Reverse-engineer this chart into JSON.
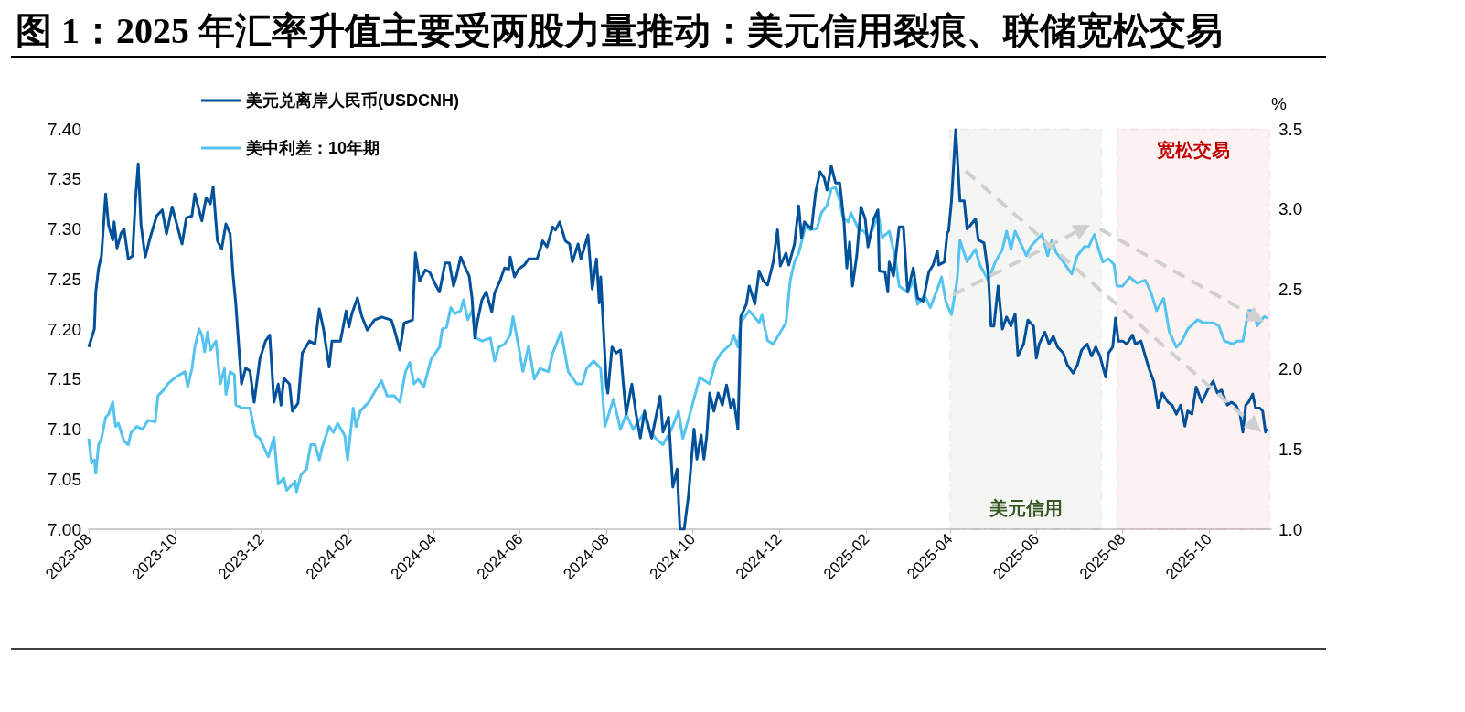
{
  "chart_data": {
    "type": "line",
    "title": "图 1：2025 年汇率升值主要受两股力量推动：美元信用裂痕、联储宽松交易",
    "y2label": "%",
    "legend": "top left",
    "marker": "none",
    "xlim": [
      "2023-08-01",
      "2025-11-14"
    ],
    "xticks": [
      {
        "value": "2023-08",
        "label": "2023-08"
      },
      {
        "value": "2023-10",
        "label": "2023-10"
      },
      {
        "value": "2023-12",
        "label": "2023-12"
      },
      {
        "value": "2024-02",
        "label": "2024-02"
      },
      {
        "value": "2024-04",
        "label": "2024-04"
      },
      {
        "value": "2024-06",
        "label": "2024-06"
      },
      {
        "value": "2024-08",
        "label": "2024-08"
      },
      {
        "value": "2024-10",
        "label": "2024-10"
      },
      {
        "value": "2024-12",
        "label": "2024-12"
      },
      {
        "value": "2025-02",
        "label": "2025-02"
      },
      {
        "value": "2025-04",
        "label": "2025-04"
      },
      {
        "value": "2025-06",
        "label": "2025-06"
      },
      {
        "value": "2025-08",
        "label": "2025-08"
      },
      {
        "value": "2025-10",
        "label": "2025-10"
      }
    ],
    "ylim": [
      7.0,
      7.4
    ],
    "yticks": [
      {
        "value": 7,
        "label": "7.00"
      },
      7.05,
      {
        "value": 7.1,
        "label": "7.10"
      },
      7.15,
      {
        "value": 7.2,
        "label": "7.20"
      },
      7.25,
      {
        "value": 7.3,
        "label": "7.30"
      },
      7.35,
      {
        "value": 7.4,
        "label": "7.40"
      }
    ],
    "y2lim": [
      1.0,
      3.5
    ],
    "y2ticks": [
      {
        "value": 1,
        "label": "1.0"
      },
      1.5,
      {
        "value": 2,
        "label": "2.0"
      },
      2.5,
      {
        "value": 3,
        "label": "3.0"
      },
      3.5
    ],
    "bands": [
      {
        "axis": "x",
        "from": "2025-04-01",
        "to": "2025-07-17",
        "label": "美元信用",
        "color": "#375623"
      },
      {
        "axis": "x",
        "from": "2025-07-28",
        "to": "2025-11-13",
        "label": "宽松交易",
        "color": "#c00000"
      }
    ],
    "series": [
      {
        "name": "美元兑离岸人民币(USDCNH)",
        "color": "#00509a",
        "axis": "y",
        "x": [
          "2023-08-01",
          "2023-08-05",
          "2023-08-06",
          "2023-08-08",
          "2023-08-10",
          "2023-08-13",
          "2023-08-15",
          "2023-08-18",
          "2023-08-19",
          "2023-08-21",
          "2023-08-24",
          "2023-08-26",
          "2023-08-29",
          "2023-09-01",
          "2023-09-03",
          "2023-09-05",
          "2023-09-07",
          "2023-09-10",
          "2023-09-13",
          "2023-09-18",
          "2023-09-22",
          "2023-09-25",
          "2023-09-29",
          "2023-10-06",
          "2023-10-09",
          "2023-10-13",
          "2023-10-15",
          "2023-10-20",
          "2023-10-23",
          "2023-10-26",
          "2023-10-28",
          "2023-10-31",
          "2023-11-03",
          "2023-11-06",
          "2023-11-09",
          "2023-11-11",
          "2023-11-13",
          "2023-11-17",
          "2023-11-20",
          "2023-11-23",
          "2023-11-26",
          "2023-11-30",
          "2023-12-04",
          "2023-12-07",
          "2023-12-10",
          "2023-12-13",
          "2023-12-15",
          "2023-12-17",
          "2023-12-21",
          "2023-12-23",
          "2023-12-27",
          "2023-12-30",
          "2024-01-04",
          "2024-01-08",
          "2024-01-11",
          "2024-01-14",
          "2024-01-18",
          "2024-01-20",
          "2024-01-26",
          "2024-01-30",
          "2024-02-01",
          "2024-02-03",
          "2024-02-07",
          "2024-02-10",
          "2024-02-14",
          "2024-02-19",
          "2024-02-24",
          "2024-03-02",
          "2024-03-04",
          "2024-03-08",
          "2024-03-11",
          "2024-03-17",
          "2024-03-19",
          "2024-03-22",
          "2024-03-26",
          "2024-03-29",
          "2024-04-02",
          "2024-04-05",
          "2024-04-09",
          "2024-04-12",
          "2024-04-15",
          "2024-04-17",
          "2024-04-20",
          "2024-04-24",
          "2024-04-26",
          "2024-04-28",
          "2024-04-30",
          "2024-05-02",
          "2024-05-05",
          "2024-05-08",
          "2024-05-12",
          "2024-05-14",
          "2024-05-18",
          "2024-05-21",
          "2024-05-24",
          "2024-05-25",
          "2024-05-28",
          "2024-05-31",
          "2024-06-04",
          "2024-06-07",
          "2024-06-13",
          "2024-06-17",
          "2024-06-20",
          "2024-06-24",
          "2024-06-26",
          "2024-06-29",
          "2024-07-03",
          "2024-07-06",
          "2024-07-08",
          "2024-07-12",
          "2024-07-14",
          "2024-07-19",
          "2024-07-22",
          "2024-07-25",
          "2024-07-27",
          "2024-07-28",
          "2024-08-01",
          "2024-08-02",
          "2024-08-05",
          "2024-08-08",
          "2024-08-11",
          "2024-08-13",
          "2024-08-15",
          "2024-08-19",
          "2024-08-22",
          "2024-08-25",
          "2024-08-28",
          "2024-09-02",
          "2024-09-08",
          "2024-09-10",
          "2024-09-14",
          "2024-09-17",
          "2024-09-20",
          "2024-09-22",
          "2024-09-25",
          "2024-09-28",
          "2024-10-02",
          "2024-10-04",
          "2024-10-07",
          "2024-10-09",
          "2024-10-11",
          "2024-10-13",
          "2024-10-16",
          "2024-10-19",
          "2024-10-22",
          "2024-10-25",
          "2024-10-28",
          "2024-10-30",
          "2024-11-02",
          "2024-11-03",
          "2024-11-04",
          "2024-11-08",
          "2024-11-10",
          "2024-11-14",
          "2024-11-17",
          "2024-11-20",
          "2024-11-23",
          "2024-11-27",
          "2024-11-30",
          "2024-12-02",
          "2024-12-06",
          "2024-12-08",
          "2024-12-12",
          "2024-12-15",
          "2024-12-17",
          "2024-12-19",
          "2024-12-24",
          "2024-12-27",
          "2024-12-30",
          "2025-01-02",
          "2025-01-04",
          "2025-01-07",
          "2025-01-10",
          "2025-01-13",
          "2025-01-16",
          "2025-01-18",
          "2025-01-20",
          "2025-01-22",
          "2025-01-25",
          "2025-01-28",
          "2025-01-31",
          "2025-02-02",
          "2025-02-06",
          "2025-02-09",
          "2025-02-10",
          "2025-02-14",
          "2025-02-16",
          "2025-02-17",
          "2025-02-20",
          "2025-02-24",
          "2025-02-27",
          "2025-03-02",
          "2025-03-06",
          "2025-03-09",
          "2025-03-13",
          "2025-03-17",
          "2025-03-20",
          "2025-03-23",
          "2025-03-24",
          "2025-03-28",
          "2025-03-30",
          "2025-03-31",
          "2025-04-02",
          "2025-04-05",
          "2025-04-08",
          "2025-04-11",
          "2025-04-13",
          "2025-04-15",
          "2025-04-19",
          "2025-04-21",
          "2025-04-25",
          "2025-04-28",
          "2025-04-30",
          "2025-05-02",
          "2025-05-05",
          "2025-05-08",
          "2025-05-11",
          "2025-05-14",
          "2025-05-17",
          "2025-05-19",
          "2025-05-23",
          "2025-05-26",
          "2025-05-30",
          "2025-06-01",
          "2025-06-03",
          "2025-06-07",
          "2025-06-10",
          "2025-06-13",
          "2025-06-16",
          "2025-06-20",
          "2025-06-23",
          "2025-06-27",
          "2025-06-30",
          "2025-07-03",
          "2025-07-07",
          "2025-07-10",
          "2025-07-13",
          "2025-07-16",
          "2025-07-20",
          "2025-07-22",
          "2025-07-25",
          "2025-07-27",
          "2025-07-29",
          "2025-08-01",
          "2025-08-04",
          "2025-08-08",
          "2025-08-10",
          "2025-08-14",
          "2025-08-17",
          "2025-08-20",
          "2025-08-23",
          "2025-08-26",
          "2025-08-29",
          "2025-09-02",
          "2025-09-05",
          "2025-09-08",
          "2025-09-11",
          "2025-09-14",
          "2025-09-16",
          "2025-09-19",
          "2025-09-22",
          "2025-09-26",
          "2025-09-30",
          "2025-10-04",
          "2025-10-07",
          "2025-10-10",
          "2025-10-14",
          "2025-10-17",
          "2025-10-20",
          "2025-10-23",
          "2025-10-25",
          "2025-10-27",
          "2025-10-29",
          "2025-11-01",
          "2025-11-03",
          "2025-11-06",
          "2025-11-08",
          "2025-11-10",
          "2025-11-12"
        ],
        "values": [
          7.182,
          7.2,
          7.237,
          7.261,
          7.273,
          7.335,
          7.304,
          7.289,
          7.307,
          7.281,
          7.296,
          7.3,
          7.27,
          7.273,
          7.328,
          7.365,
          7.304,
          7.272,
          7.289,
          7.313,
          7.319,
          7.295,
          7.322,
          7.285,
          7.311,
          7.313,
          7.335,
          7.308,
          7.331,
          7.325,
          7.342,
          7.288,
          7.28,
          7.305,
          7.295,
          7.255,
          7.225,
          7.145,
          7.161,
          7.158,
          7.127,
          7.17,
          7.188,
          7.194,
          7.127,
          7.145,
          7.124,
          7.151,
          7.145,
          7.118,
          7.126,
          7.176,
          7.188,
          7.185,
          7.22,
          7.2,
          7.162,
          7.188,
          7.188,
          7.218,
          7.202,
          7.215,
          7.231,
          7.213,
          7.199,
          7.209,
          7.212,
          7.209,
          7.2,
          7.179,
          7.206,
          7.209,
          7.276,
          7.248,
          7.259,
          7.257,
          7.245,
          7.237,
          7.266,
          7.266,
          7.243,
          7.253,
          7.272,
          7.259,
          7.253,
          7.231,
          7.191,
          7.209,
          7.229,
          7.237,
          7.217,
          7.236,
          7.249,
          7.261,
          7.26,
          7.272,
          7.252,
          7.26,
          7.264,
          7.27,
          7.27,
          7.288,
          7.282,
          7.302,
          7.299,
          7.307,
          7.288,
          7.285,
          7.267,
          7.285,
          7.27,
          7.294,
          7.24,
          7.27,
          7.226,
          7.252,
          7.145,
          7.136,
          7.182,
          7.176,
          7.179,
          7.145,
          7.115,
          7.145,
          7.115,
          7.091,
          7.118,
          7.091,
          7.133,
          7.097,
          7.112,
          7.042,
          7.06,
          7.0,
          7.0,
          7.033,
          7.1,
          7.07,
          7.094,
          7.07,
          7.094,
          7.136,
          7.118,
          7.136,
          7.124,
          7.144,
          7.121,
          7.13,
          7.1,
          7.152,
          7.212,
          7.225,
          7.243,
          7.225,
          7.258,
          7.248,
          7.244,
          7.267,
          7.299,
          7.263,
          7.276,
          7.264,
          7.285,
          7.323,
          7.291,
          7.307,
          7.3,
          7.337,
          7.357,
          7.351,
          7.339,
          7.363,
          7.346,
          7.346,
          7.307,
          7.261,
          7.287,
          7.243,
          7.273,
          7.322,
          7.31,
          7.282,
          7.31,
          7.319,
          7.258,
          7.257,
          7.237,
          7.267,
          7.253,
          7.302,
          7.302,
          7.237,
          7.261,
          7.231,
          7.228,
          7.257,
          7.264,
          7.278,
          7.264,
          7.267,
          7.296,
          7.298,
          7.328,
          7.399,
          7.328,
          7.328,
          7.3,
          7.303,
          7.31,
          7.289,
          7.286,
          7.255,
          7.203,
          7.203,
          7.243,
          7.2,
          7.212,
          7.203,
          7.215,
          7.173,
          7.185,
          7.209,
          7.203,
          7.171,
          7.185,
          7.197,
          7.185,
          7.193,
          7.182,
          7.176,
          7.164,
          7.156,
          7.164,
          7.179,
          7.185,
          7.173,
          7.182,
          7.173,
          7.152,
          7.176,
          7.182,
          7.211,
          7.188,
          7.188,
          7.185,
          7.194,
          7.185,
          7.188,
          7.173,
          7.159,
          7.148,
          7.121,
          7.136,
          7.127,
          7.124,
          7.115,
          7.124,
          7.103,
          7.118,
          7.115,
          7.142,
          7.127,
          7.139,
          7.148,
          7.136,
          7.139,
          7.124,
          7.127,
          7.124,
          7.115,
          7.097,
          7.124,
          7.127,
          7.135,
          7.121,
          7.121,
          7.118,
          7.097,
          7.1
        ]
      },
      {
        "name": "美中利差：10年期",
        "color": "#55c3f0",
        "axis": "y2",
        "x": [
          "2023-08-01",
          "2023-08-03",
          "2023-08-05",
          "2023-08-06",
          "2023-08-08",
          "2023-08-10",
          "2023-08-13",
          "2023-08-15",
          "2023-08-18",
          "2023-08-20",
          "2023-08-22",
          "2023-08-26",
          "2023-08-29",
          "2023-08-31",
          "2023-09-04",
          "2023-09-08",
          "2023-09-12",
          "2023-09-17",
          "2023-09-19",
          "2023-09-23",
          "2023-09-26",
          "2023-10-01",
          "2023-10-08",
          "2023-10-10",
          "2023-10-13",
          "2023-10-15",
          "2023-10-18",
          "2023-10-20",
          "2023-10-22",
          "2023-10-24",
          "2023-10-26",
          "2023-10-30",
          "2023-11-02",
          "2023-11-05",
          "2023-11-06",
          "2023-11-09",
          "2023-11-12",
          "2023-11-13",
          "2023-11-18",
          "2023-11-23",
          "2023-11-27",
          "2023-11-30",
          "2023-12-06",
          "2023-12-10",
          "2023-12-13",
          "2023-12-17",
          "2023-12-19",
          "2023-12-25",
          "2023-12-26",
          "2023-12-29",
          "2024-01-02",
          "2024-01-05",
          "2024-01-08",
          "2024-01-11",
          "2024-01-13",
          "2024-01-18",
          "2024-01-21",
          "2024-01-24",
          "2024-01-29",
          "2024-01-31",
          "2024-02-04",
          "2024-02-06",
          "2024-02-09",
          "2024-02-15",
          "2024-02-20",
          "2024-02-24",
          "2024-02-28",
          "2024-03-04",
          "2024-03-08",
          "2024-03-12",
          "2024-03-15",
          "2024-03-18",
          "2024-03-21",
          "2024-03-25",
          "2024-03-30",
          "2024-04-05",
          "2024-04-07",
          "2024-04-10",
          "2024-04-13",
          "2024-04-16",
          "2024-04-20",
          "2024-04-22",
          "2024-04-25",
          "2024-04-28",
          "2024-05-01",
          "2024-05-05",
          "2024-05-11",
          "2024-05-14",
          "2024-05-17",
          "2024-05-21",
          "2024-05-25",
          "2024-05-27",
          "2024-05-31",
          "2024-06-03",
          "2024-06-07",
          "2024-06-11",
          "2024-06-15",
          "2024-06-21",
          "2024-06-24",
          "2024-06-30",
          "2024-07-05",
          "2024-07-11",
          "2024-07-15",
          "2024-07-18",
          "2024-07-23",
          "2024-07-28",
          "2024-07-31",
          "2024-08-06",
          "2024-08-11",
          "2024-08-15",
          "2024-08-20",
          "2024-08-27",
          "2024-08-31",
          "2024-09-05",
          "2024-09-10",
          "2024-09-16",
          "2024-09-21",
          "2024-09-24",
          "2024-09-29",
          "2024-10-06",
          "2024-10-13",
          "2024-10-17",
          "2024-10-21",
          "2024-10-28",
          "2024-10-30",
          "2024-11-02",
          "2024-11-04",
          "2024-11-10",
          "2024-11-17",
          "2024-11-19",
          "2024-11-23",
          "2024-11-27",
          "2024-12-02",
          "2024-12-06",
          "2024-12-09",
          "2024-12-12",
          "2024-12-15",
          "2024-12-20",
          "2024-12-23",
          "2024-12-28",
          "2024-12-31",
          "2025-01-04",
          "2025-01-07",
          "2025-01-10",
          "2025-01-13",
          "2025-01-15",
          "2025-01-19",
          "2025-01-21",
          "2025-01-26",
          "2025-01-30",
          "2025-02-03",
          "2025-02-08",
          "2025-02-09",
          "2025-02-12",
          "2025-02-17",
          "2025-02-21",
          "2025-02-24",
          "2025-03-02",
          "2025-03-06",
          "2025-03-09",
          "2025-03-14",
          "2025-03-18",
          "2025-03-23",
          "2025-03-26",
          "2025-03-29",
          "2025-04-02",
          "2025-04-06",
          "2025-04-08",
          "2025-04-13",
          "2025-04-19",
          "2025-04-22",
          "2025-04-28",
          "2025-05-03",
          "2025-05-08",
          "2025-05-11",
          "2025-05-14",
          "2025-05-17",
          "2025-05-22",
          "2025-05-25",
          "2025-05-28",
          "2025-06-01",
          "2025-06-05",
          "2025-06-09",
          "2025-06-12",
          "2025-06-15",
          "2025-06-20",
          "2025-06-23",
          "2025-06-26",
          "2025-06-30",
          "2025-07-05",
          "2025-07-08",
          "2025-07-12",
          "2025-07-15",
          "2025-07-18",
          "2025-07-22",
          "2025-07-26",
          "2025-07-28",
          "2025-08-01",
          "2025-08-06",
          "2025-08-11",
          "2025-08-17",
          "2025-08-21",
          "2025-08-25",
          "2025-08-30",
          "2025-09-03",
          "2025-09-08",
          "2025-09-12",
          "2025-09-16",
          "2025-09-23",
          "2025-09-27",
          "2025-10-04",
          "2025-10-08",
          "2025-10-12",
          "2025-10-18",
          "2025-10-21",
          "2025-10-25",
          "2025-10-29",
          "2025-11-02",
          "2025-11-04",
          "2025-11-09",
          "2025-11-12"
        ],
        "values": [
          1.566,
          1.414,
          1.433,
          1.349,
          1.528,
          1.566,
          1.699,
          1.718,
          1.794,
          1.642,
          1.661,
          1.549,
          1.528,
          1.604,
          1.642,
          1.623,
          1.68,
          1.67,
          1.834,
          1.87,
          1.908,
          1.946,
          1.984,
          1.889,
          2.003,
          2.137,
          2.251,
          2.213,
          2.108,
          2.232,
          2.118,
          2.175,
          1.908,
          2.003,
          1.842,
          1.984,
          1.965,
          1.775,
          1.756,
          1.756,
          1.585,
          1.566,
          1.452,
          1.575,
          1.281,
          1.319,
          1.243,
          1.3,
          1.233,
          1.338,
          1.376,
          1.528,
          1.528,
          1.433,
          1.509,
          1.642,
          1.604,
          1.661,
          1.585,
          1.433,
          1.756,
          1.642,
          1.737,
          1.794,
          1.87,
          1.927,
          1.832,
          1.834,
          1.794,
          1.984,
          2.041,
          1.908,
          1.936,
          1.889,
          2.06,
          2.137,
          2.251,
          2.26,
          2.384,
          2.346,
          2.365,
          2.433,
          2.308,
          2.365,
          2.194,
          2.175,
          2.194,
          2.051,
          2.137,
          2.156,
          2.213,
          2.327,
          2.137,
          1.984,
          2.146,
          1.937,
          2.003,
          1.984,
          2.099,
          2.232,
          1.984,
          1.908,
          1.908,
          2.003,
          2.051,
          2.003,
          1.642,
          1.813,
          1.623,
          1.718,
          1.623,
          1.718,
          1.623,
          1.566,
          1.528,
          1.623,
          1.737,
          1.566,
          1.718,
          1.948,
          1.908,
          2.041,
          2.099,
          2.156,
          2.213,
          2.137,
          2.29,
          2.365,
          2.29,
          2.337,
          2.177,
          2.156,
          2.232,
          2.29,
          2.555,
          2.669,
          2.726,
          2.897,
          2.869,
          2.878,
          2.975,
          3.021,
          3.125,
          3.135,
          3.05,
          2.955,
          2.918,
          2.975,
          2.878,
          2.86,
          2.821,
          2.935,
          2.983,
          2.821,
          2.86,
          2.707,
          2.518,
          2.479,
          2.555,
          2.404,
          2.461,
          2.385,
          2.498,
          2.575,
          2.422,
          2.34,
          2.555,
          2.804,
          2.67,
          2.747,
          2.651,
          2.555,
          2.669,
          2.747,
          2.861,
          2.747,
          2.861,
          2.765,
          2.708,
          2.765,
          2.804,
          2.842,
          2.708,
          2.804,
          2.727,
          2.67,
          2.632,
          2.594,
          2.708,
          2.765,
          2.765,
          2.84,
          2.747,
          2.669,
          2.689,
          2.651,
          2.518,
          2.518,
          2.575,
          2.537,
          2.555,
          2.479,
          2.365,
          2.441,
          2.232,
          2.137,
          2.175,
          2.251,
          2.308,
          2.289,
          2.289,
          2.27,
          2.175,
          2.156,
          2.175,
          2.175,
          2.365,
          2.365,
          2.27,
          2.327,
          2.318
        ]
      }
    ]
  }
}
